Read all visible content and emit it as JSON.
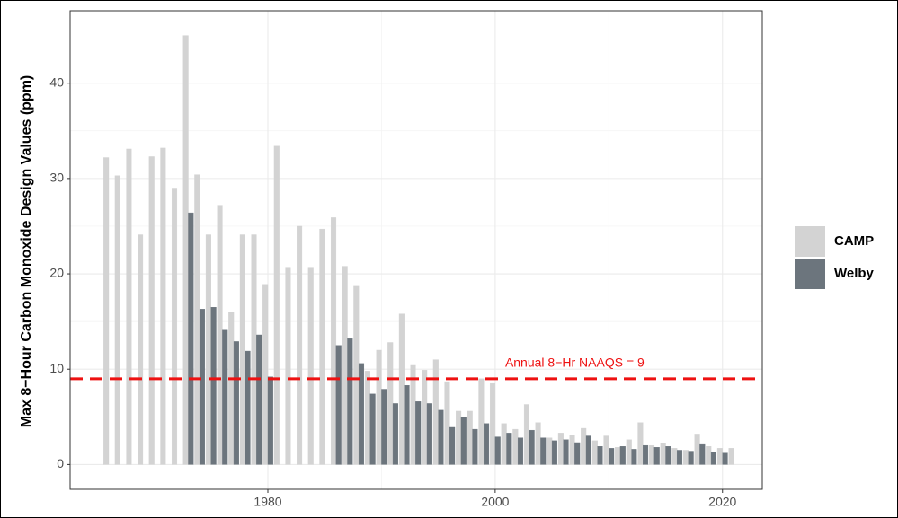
{
  "chart_data": {
    "type": "bar",
    "ylabel": "Max 8−Hour Carbon Monoxide Design Values (ppm)",
    "x": [
      1965,
      1966,
      1967,
      1968,
      1969,
      1970,
      1971,
      1972,
      1973,
      1974,
      1975,
      1976,
      1977,
      1978,
      1979,
      1980,
      1981,
      1982,
      1983,
      1984,
      1985,
      1986,
      1987,
      1988,
      1989,
      1990,
      1991,
      1992,
      1993,
      1994,
      1995,
      1996,
      1997,
      1998,
      1999,
      2000,
      2001,
      2002,
      2003,
      2004,
      2005,
      2006,
      2007,
      2008,
      2009,
      2010,
      2011,
      2012,
      2013,
      2014,
      2015,
      2016,
      2017,
      2018,
      2019,
      2020,
      2021
    ],
    "series": [
      {
        "name": "CAMP",
        "color": "#d3d3d3",
        "values": [
          null,
          32.2,
          30.3,
          33.1,
          24.1,
          32.3,
          33.2,
          29.0,
          45.0,
          30.4,
          24.1,
          27.2,
          16.0,
          24.1,
          24.1,
          18.9,
          33.4,
          20.7,
          25.0,
          20.7,
          24.7,
          25.9,
          20.8,
          18.7,
          9.8,
          12.0,
          12.8,
          15.8,
          10.4,
          9.9,
          11.0,
          8.7,
          5.6,
          5.6,
          9.0,
          8.5,
          4.3,
          3.7,
          6.3,
          4.4,
          2.8,
          3.3,
          3.1,
          3.8,
          2.5,
          3.0,
          1.8,
          2.6,
          4.4,
          2.0,
          2.2,
          1.7,
          1.5,
          3.2,
          1.9,
          1.7,
          1.7
        ]
      },
      {
        "name": "Welby",
        "color": "#6c757d",
        "values": [
          0,
          0,
          0,
          0,
          0,
          0,
          0,
          0,
          26.4,
          16.3,
          16.5,
          14.1,
          12.9,
          11.9,
          13.6,
          9.2,
          0,
          0,
          0,
          0,
          0,
          12.5,
          13.2,
          10.6,
          7.4,
          7.9,
          6.4,
          8.3,
          6.6,
          6.4,
          5.7,
          3.9,
          5.0,
          3.7,
          4.3,
          2.9,
          3.3,
          2.8,
          3.6,
          2.8,
          2.5,
          2.6,
          2.3,
          3.0,
          1.9,
          1.7,
          1.9,
          1.6,
          2.0,
          1.8,
          1.9,
          1.5,
          1.4,
          2.1,
          1.3,
          1.2,
          null
        ]
      }
    ],
    "xlim": [
      1962.6,
      2023.5
    ],
    "xticks": [
      1980,
      2000,
      2020
    ],
    "ylim": [
      -2.6,
      47.6
    ],
    "yticks": [
      0,
      10,
      20,
      30,
      40
    ],
    "grid": true,
    "hline": {
      "value": 9,
      "color": "#ee1111"
    },
    "annotation": {
      "text": "Annual 8−Hr NAAQS = 9",
      "x": 2007,
      "y": 10.6
    },
    "legend": "right"
  }
}
